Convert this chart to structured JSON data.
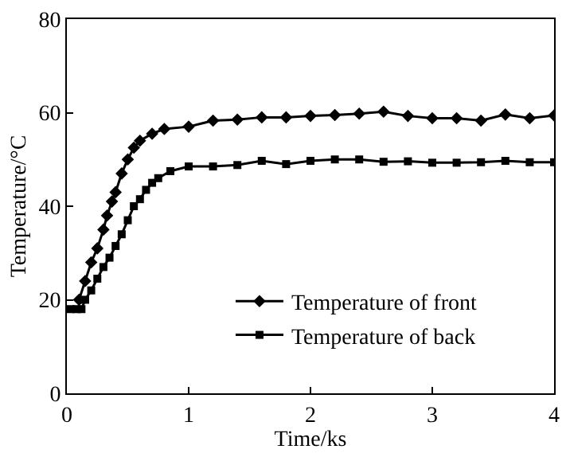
{
  "chart_data": {
    "type": "line",
    "xlabel": "Time/ks",
    "ylabel": "Temperature/°C",
    "xlim": [
      0,
      4
    ],
    "xticks": [
      0,
      1,
      2,
      3,
      4
    ],
    "ylim": [
      0,
      80
    ],
    "yticks": [
      0,
      20,
      40,
      60,
      80
    ],
    "legend": "bottom",
    "series": [
      {
        "name": "Temperature of front",
        "color": "#000000",
        "marker": "diamond",
        "x": [
          0.1,
          0.15,
          0.2,
          0.25,
          0.3,
          0.33,
          0.37,
          0.4,
          0.45,
          0.5,
          0.55,
          0.6,
          0.7,
          0.8,
          1.0,
          1.2,
          1.4,
          1.6,
          1.8,
          2.0,
          2.2,
          2.4,
          2.6,
          2.8,
          3.0,
          3.2,
          3.4,
          3.6,
          3.8,
          4.0
        ],
        "values": [
          20,
          24,
          28,
          31,
          35,
          38,
          41,
          43,
          47,
          50,
          52.5,
          54,
          55.5,
          56.5,
          57,
          58.3,
          58.5,
          59,
          59,
          59.3,
          59.5,
          59.8,
          60.2,
          59.3,
          58.8,
          58.8,
          58.3,
          59.6,
          58.8,
          59.4
        ]
      },
      {
        "name": "Temperature of back",
        "color": "#000000",
        "marker": "square",
        "x": [
          0.03,
          0.08,
          0.12,
          0.15,
          0.2,
          0.25,
          0.3,
          0.35,
          0.4,
          0.45,
          0.5,
          0.55,
          0.6,
          0.65,
          0.7,
          0.75,
          0.85,
          1.0,
          1.2,
          1.4,
          1.6,
          1.8,
          2.0,
          2.2,
          2.4,
          2.6,
          2.8,
          3.0,
          3.2,
          3.4,
          3.6,
          3.8,
          4.0
        ],
        "values": [
          18,
          18,
          18,
          20,
          22,
          24.5,
          27,
          29,
          31.5,
          34,
          37,
          40,
          41.5,
          43.5,
          45,
          46,
          47.5,
          48.5,
          48.5,
          48.8,
          49.7,
          49,
          49.7,
          50,
          50,
          49.5,
          49.6,
          49.3,
          49.3,
          49.4,
          49.7,
          49.4,
          49.4
        ]
      }
    ]
  }
}
